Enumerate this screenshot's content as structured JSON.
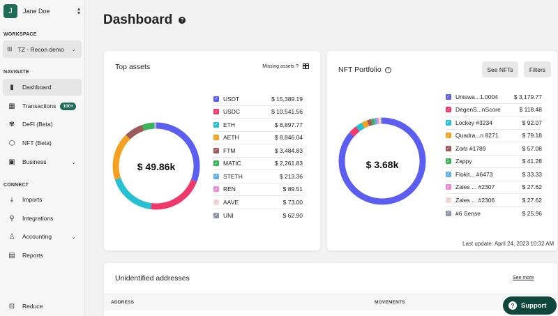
{
  "user": {
    "initial": "J",
    "name": "Jane Doe"
  },
  "sidebar": {
    "workspace_label": "WORKSPACE",
    "workspace_name": "TZ - Recon demo",
    "navigate_label": "NAVIGATE",
    "connect_label": "CONNECT",
    "nav": [
      {
        "label": "Dashboard",
        "icon": "chart-icon"
      },
      {
        "label": "Transactions",
        "icon": "calendar-icon",
        "badge": "100+"
      },
      {
        "label": "DeFi (Beta)",
        "icon": "defi-icon"
      },
      {
        "label": "NFT (Beta)",
        "icon": "nft-icon"
      },
      {
        "label": "Business",
        "icon": "briefcase-icon"
      }
    ],
    "connect": [
      {
        "label": "Imports",
        "icon": "download-icon"
      },
      {
        "label": "Integrations",
        "icon": "plug-icon"
      },
      {
        "label": "Accounting",
        "icon": "person-icon"
      },
      {
        "label": "Reports",
        "icon": "document-icon"
      }
    ],
    "reduce_label": "Reduce"
  },
  "page": {
    "title": "Dashboard"
  },
  "top_assets": {
    "title": "Top assets",
    "missing_label": "Missing assets ?",
    "total": "$ 49.86k",
    "items": [
      {
        "name": "USDT",
        "value": "$ 15,389.19",
        "color": "#5b5ef0"
      },
      {
        "name": "USDC",
        "value": "$ 10,541.56",
        "color": "#f0386b"
      },
      {
        "name": "ETH",
        "value": "$ 8,897.77",
        "color": "#26c0d3"
      },
      {
        "name": "AETH",
        "value": "$ 8,846.04",
        "color": "#f5a021"
      },
      {
        "name": "FTM",
        "value": "$ 3,484.83",
        "color": "#9c5a5a"
      },
      {
        "name": "MATIC",
        "value": "$ 2,261.83",
        "color": "#3db357"
      },
      {
        "name": "STETH",
        "value": "$ 213.36",
        "color": "#63aee8"
      },
      {
        "name": "REN",
        "value": "$ 89.51",
        "color": "#ec8ad6"
      },
      {
        "name": "AAVE",
        "value": "$ 73.00",
        "color": "#f3dada"
      },
      {
        "name": "UNI",
        "value": "$ 62.90",
        "color": "#8f96aa"
      }
    ]
  },
  "nft_portfolio": {
    "title": "NFT Portfolio",
    "see_nfts_label": "See NFTs",
    "filters_label": "Filters",
    "total": "$ 3.68k",
    "last_update": "Last update: April 24, 2023 10:32 AM",
    "items": [
      {
        "name": "Uniswa...1.0004",
        "value": "$ 3,179.77",
        "color": "#5b5ef0"
      },
      {
        "name": "DegenS...nScore",
        "value": "$ 118.48",
        "color": "#f0386b"
      },
      {
        "name": "Lockey #3234",
        "value": "$ 92.07",
        "color": "#26c0d3"
      },
      {
        "name": "Quadra...n 8271",
        "value": "$ 79.18",
        "color": "#f5a021"
      },
      {
        "name": "Zorb #1789",
        "value": "$ 57.08",
        "color": "#9c5a5a"
      },
      {
        "name": "Zappy",
        "value": "$ 41.28",
        "color": "#3db357"
      },
      {
        "name": "Flokit... #6473",
        "value": "$ 33.33",
        "color": "#63aee8"
      },
      {
        "name": "Zales ... #2307",
        "value": "$ 27.62",
        "color": "#ec8ad6"
      },
      {
        "name": "Zales ... #2306",
        "value": "$ 27.62",
        "color": "#f3dada"
      },
      {
        "name": "#6 Sense",
        "value": "$ 25.96",
        "color": "#8f96aa"
      }
    ]
  },
  "unidentified": {
    "title": "Unidentified addresses",
    "see_more_label": "See more",
    "columns": [
      "ADDRESS",
      "MOVEMENTS"
    ]
  },
  "support_label": "Support"
}
